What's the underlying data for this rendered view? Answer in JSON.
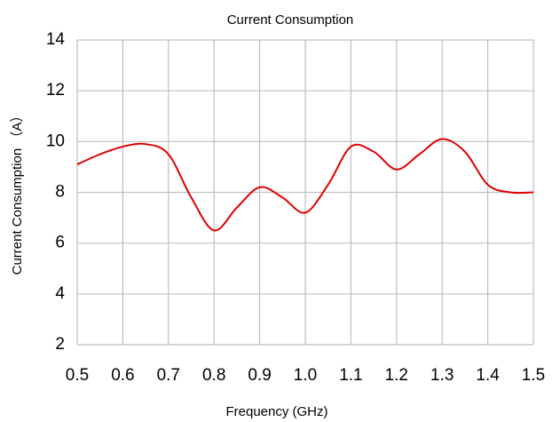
{
  "chart_data": {
    "type": "line",
    "title": "Current Consumption",
    "x_label": "Frequency (GHz)",
    "y_label": "Current Consumption （A）",
    "x": [
      0.5,
      0.55,
      0.6,
      0.65,
      0.7,
      0.75,
      0.8,
      0.85,
      0.9,
      0.95,
      1.0,
      1.05,
      1.1,
      1.15,
      1.2,
      1.25,
      1.3,
      1.35,
      1.4,
      1.45,
      1.5
    ],
    "series": [
      {
        "name": "Current Consumption",
        "color": "#e00000",
        "values": [
          9.1,
          9.5,
          9.8,
          9.9,
          9.5,
          7.8,
          6.5,
          7.4,
          8.2,
          7.8,
          7.2,
          8.3,
          9.8,
          9.6,
          8.9,
          9.5,
          10.1,
          9.6,
          8.3,
          8.0,
          8.0
        ]
      }
    ],
    "xlim": [
      0.5,
      1.5
    ],
    "xticks": [
      0.5,
      0.6,
      0.7,
      0.8,
      0.9,
      {
        "value": 1,
        "label": "1.0"
      },
      1.1,
      1.2,
      1.3,
      1.4,
      1.5
    ],
    "ylim": [
      2,
      14
    ],
    "yticks": [
      2,
      4,
      6,
      8,
      10,
      12,
      14
    ],
    "grid": true
  }
}
